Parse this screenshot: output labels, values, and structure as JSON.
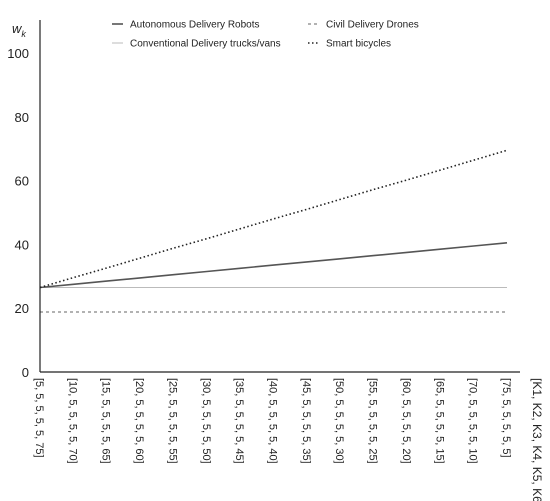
{
  "chart_data": {
    "type": "line",
    "ylabel": "w",
    "ylabel_sub": "k",
    "xlabel": "[K1, K2, K3, K4, K5, K6]",
    "ylim": [
      0,
      100
    ],
    "yticks": [
      0,
      20,
      40,
      60,
      80,
      100
    ],
    "grid": false,
    "legend_position": "top",
    "categories": [
      "[5, 5, 5, 5, 5, 75]",
      "[10, 5, 5, 5, 5, 70]",
      "[15, 5, 5, 5, 5, 65]",
      "[20, 5, 5, 5, 5, 60]",
      "[25, 5, 5, 5, 5, 55]",
      "[30, 5, 5, 5, 5, 50]",
      "[35, 5, 5, 5, 5, 45]",
      "[40, 5, 5, 5, 5, 40]",
      "[45, 5, 5, 5, 5, 35]",
      "[50, 5, 5, 5, 5, 30]",
      "[55, 5, 5, 5, 5, 25]",
      "[60, 5, 5, 5, 5, 20]",
      "[65, 5, 5, 5, 5, 15]",
      "[70, 5, 5, 5, 5, 10]",
      "[75, 5, 5, 5, 5, 5]"
    ],
    "series": [
      {
        "name": "Autonomous Delivery Robots",
        "style": "solid",
        "color": "#555555",
        "values": [
          26.5,
          27.5,
          28.5,
          29.5,
          30.5,
          31.5,
          32.5,
          33.5,
          34.5,
          35.5,
          36.5,
          37.5,
          38.5,
          39.5,
          40.5
        ]
      },
      {
        "name": "Civil Delivery Drones",
        "style": "dashed",
        "color": "#666666",
        "values": [
          18.8,
          18.8,
          18.8,
          18.8,
          18.8,
          18.8,
          18.8,
          18.8,
          18.8,
          18.8,
          18.8,
          18.8,
          18.8,
          18.8,
          18.8
        ]
      },
      {
        "name": "Conventional Delivery trucks/vans",
        "style": "solid-light",
        "color": "#bbbbbb",
        "values": [
          26.5,
          26.5,
          26.5,
          26.5,
          26.5,
          26.5,
          26.5,
          26.5,
          26.5,
          26.5,
          26.5,
          26.5,
          26.5,
          26.5,
          26.5
        ]
      },
      {
        "name": "Smart bicycles",
        "style": "dotted",
        "color": "#222222",
        "values": [
          26.5,
          29.6,
          32.6,
          35.7,
          38.8,
          41.8,
          44.9,
          48.0,
          51.0,
          54.1,
          57.2,
          60.2,
          63.3,
          66.4,
          69.5
        ]
      }
    ]
  }
}
